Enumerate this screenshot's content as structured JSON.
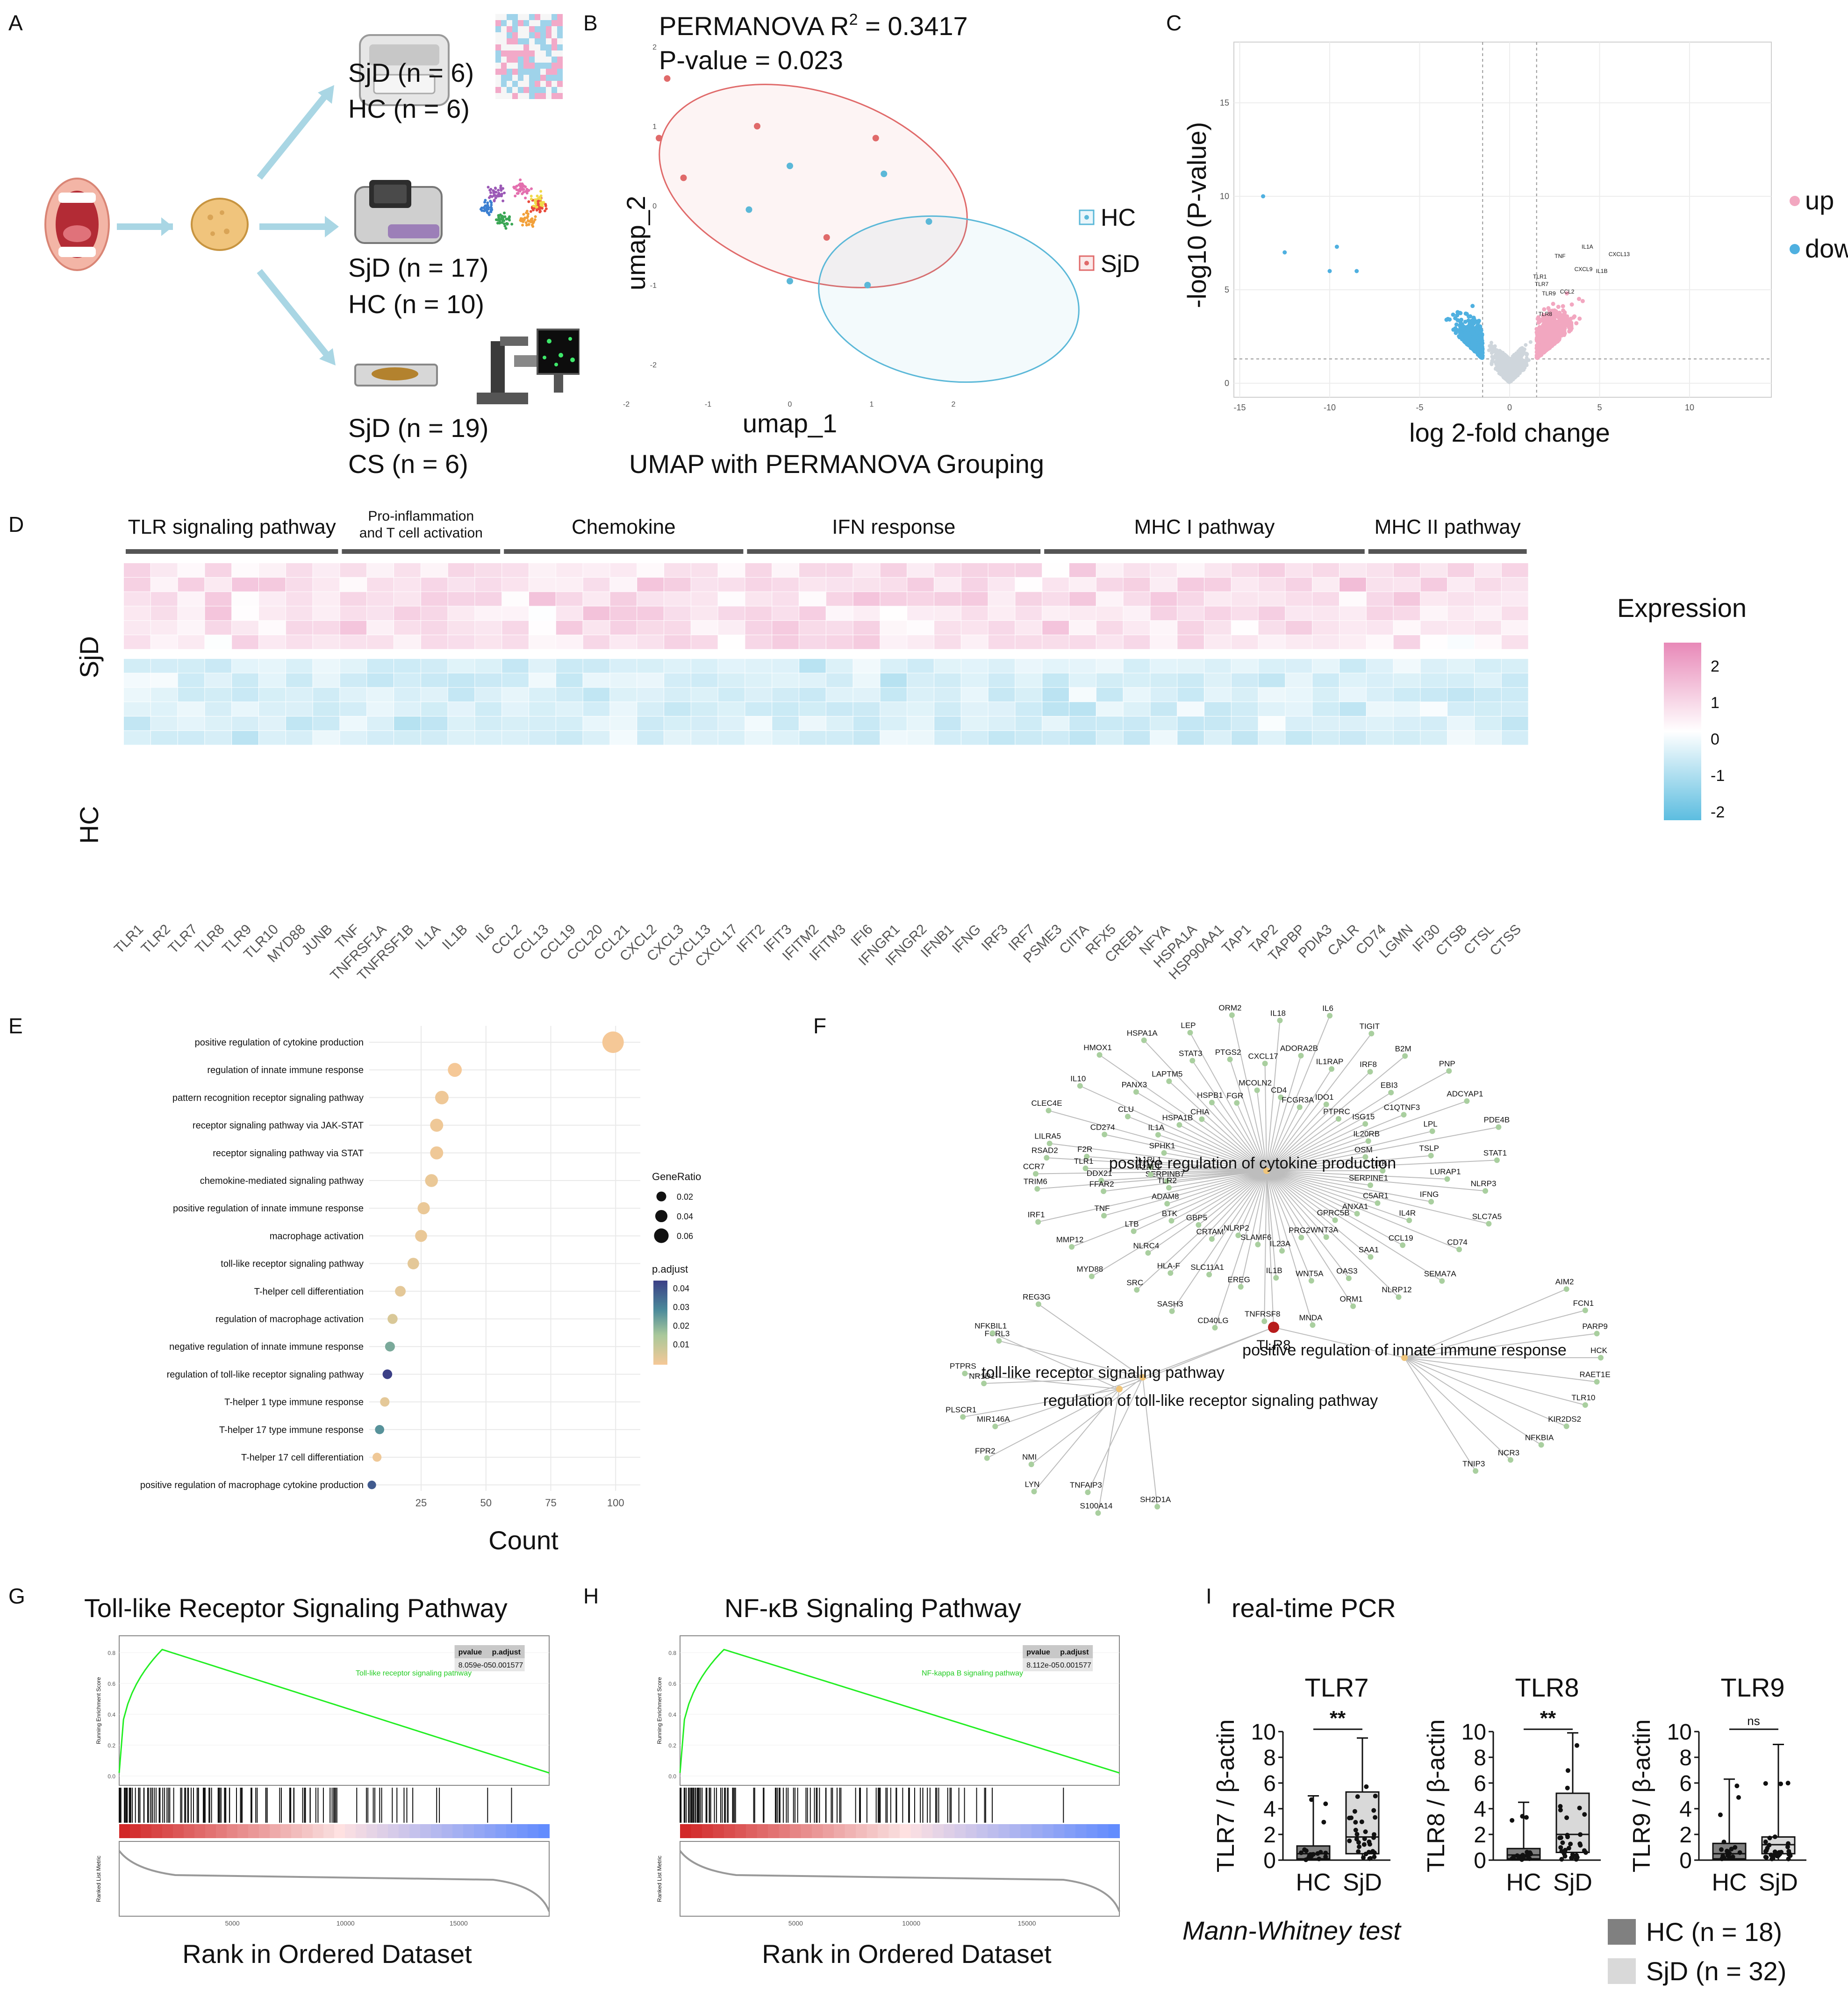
{
  "panels": {
    "A": "A",
    "B": "B",
    "C": "C",
    "D": "D",
    "E": "E",
    "F": "F",
    "G": "G",
    "H": "H",
    "I": "I"
  },
  "panelA": {
    "cohort1": [
      "SjD (n = 6)",
      "HC (n = 6)"
    ],
    "cohort2": [
      "SjD (n = 17)",
      "HC (n = 10)"
    ],
    "cohort3": [
      "SjD (n = 19)",
      "CS (n = 6)"
    ]
  },
  "panelB": {
    "stat_prefix": "PERMANOVA R",
    "stat_sup": "2",
    "stat_value": " = 0.3417",
    "pvalue": "P-value = 0.023",
    "xlabel": "umap_1",
    "ylabel": "umap_2",
    "subtitle": "UMAP with PERMANOVA Grouping",
    "legend": [
      {
        "label": "HC",
        "color": "#5bb8d8"
      },
      {
        "label": "SjD",
        "color": "#e06a6a"
      }
    ],
    "xticks": [
      "-2",
      "-1",
      "0",
      "1",
      "2"
    ],
    "yticks": [
      "2",
      "1",
      "0",
      "-1",
      "-2"
    ],
    "chart_data": {
      "type": "scatter",
      "series": [
        {
          "name": "SjD",
          "x": [
            -1.5,
            -1.6,
            -1.3,
            -0.4,
            1.05,
            0.45
          ],
          "y": [
            1.6,
            0.85,
            0.35,
            1.0,
            0.85,
            -0.4
          ]
        },
        {
          "name": "HC",
          "x": [
            0.0,
            1.15,
            -0.5,
            1.7,
            0.0,
            0.95
          ],
          "y": [
            0.5,
            0.4,
            -0.05,
            -0.2,
            -0.95,
            -1.0
          ]
        }
      ]
    }
  },
  "panelC": {
    "xlabel": "log 2-fold change",
    "ylabel": "-log10 (P-value)",
    "legend": [
      {
        "label": "up",
        "color": "#f2a7c0"
      },
      {
        "label": "down",
        "color": "#4fb0e0"
      }
    ],
    "xticks": [
      "-15",
      "-10",
      "-5",
      "0",
      "5",
      "10"
    ],
    "yticks": [
      "0",
      "5",
      "10",
      "15"
    ],
    "gene_labels": [
      "TNF",
      "IL1A",
      "CXCL13",
      "CXCL9",
      "IL1B",
      "TLR7",
      "TLR9",
      "CCL2",
      "TLR8",
      "TLR1"
    ]
  },
  "panelD": {
    "groups": [
      {
        "label": "TLR signaling pathway"
      },
      {
        "label": "Pro-inflammation\nand T cell activation"
      },
      {
        "label": "Chemokine"
      },
      {
        "label": "IFN response"
      },
      {
        "label": "MHC I pathway"
      },
      {
        "label": "MHC II pathway"
      }
    ],
    "row_labels": [
      "SjD",
      "HC"
    ],
    "genes": [
      "TLR1",
      "TLR2",
      "TLR7",
      "TLR8",
      "TLR9",
      "TLR10",
      "MYD88",
      "JUNB",
      "TNF",
      "TNFRSF1A",
      "TNFRSF1B",
      "IL1A",
      "IL1B",
      "IL6",
      "CCL2",
      "CCL13",
      "CCL19",
      "CCL20",
      "CCL21",
      "CXCL2",
      "CXCL3",
      "CXCL13",
      "CXCL17",
      "IFIT2",
      "IFIT3",
      "IFITM2",
      "IFITM3",
      "IFI6",
      "IFNGR1",
      "IFNGR2",
      "IFNB1",
      "IFNG",
      "IRF3",
      "IRF7",
      "PSME3",
      "CIITA",
      "RFX5",
      "CREB1",
      "NFYA",
      "HSPA1A",
      "HSP90AA1",
      "TAP1",
      "TAP2",
      "TAPBP",
      "PDIA3",
      "CALR",
      "CD74",
      "LGMN",
      "IFI30",
      "CTSB",
      "CTSL",
      "CTSS"
    ],
    "legend_title": "Expression",
    "legend_ticks": [
      "2",
      "1",
      "0",
      "-1",
      "-2"
    ]
  },
  "panelE": {
    "xlabel": "Count",
    "xticks": [
      "25",
      "50",
      "75",
      "100"
    ],
    "terms": [
      "positive regulation of cytokine production",
      "regulation of innate immune response",
      "pattern recognition receptor signaling pathway",
      "receptor signaling pathway via JAK-STAT",
      "receptor signaling pathway via STAT",
      "chemokine-mediated signaling pathway",
      "positive regulation of innate immune response",
      "macrophage activation",
      "toll-like receptor signaling pathway",
      "T-helper cell differentiation",
      "regulation of macrophage activation",
      "negative regulation of innate immune response",
      "regulation of toll-like receptor signaling pathway",
      "T-helper 1 type immune response",
      "T-helper 17 type immune response",
      "T-helper 17 cell differentiation",
      "positive regulation of macrophage cytokine production"
    ],
    "chart_data": {
      "type": "scatter",
      "x": [
        99,
        38,
        33,
        31,
        31,
        29,
        26,
        25,
        22,
        17,
        14,
        13,
        12,
        11,
        9,
        8,
        6
      ],
      "padj": [
        0.005,
        0.005,
        0.006,
        0.006,
        0.006,
        0.007,
        0.007,
        0.007,
        0.008,
        0.008,
        0.01,
        0.025,
        0.045,
        0.008,
        0.03,
        0.006,
        0.04
      ],
      "gene_ratio": [
        0.065,
        0.03,
        0.028,
        0.026,
        0.026,
        0.025,
        0.022,
        0.021,
        0.019,
        0.015,
        0.012,
        0.011,
        0.01,
        0.009,
        0.008,
        0.007,
        0.005
      ]
    },
    "legend_generatio_title": "GeneRatio",
    "legend_generatio": [
      "0.02",
      "0.04",
      "0.06"
    ],
    "legend_padj_title": "p.adjust",
    "legend_padj": [
      "0.04",
      "0.03",
      "0.02",
      "0.01"
    ]
  },
  "panelF": {
    "hubs": [
      "positive regulation of cytokine production",
      "positive regulation of innate immune response",
      "toll-like receptor signaling pathway",
      "regulation of toll-like receptor signaling pathway"
    ],
    "focus": "TLR8",
    "genes": [
      "SERPINB7",
      "DDX21",
      "CCR7",
      "IL1RL1",
      "F2R",
      "LILRA5",
      "SPHK1",
      "CD274",
      "CLEC4E",
      "IL1A",
      "CLU",
      "IL10",
      "HSPA1B",
      "PANX3",
      "HMOX1",
      "CHIA",
      "LAPTM5",
      "HSPA1A",
      "HSPB1",
      "STAT3",
      "LEP",
      "FGR",
      "PTGS2",
      "ORM2",
      "MCOLN2",
      "CXCL17",
      "IL18",
      "CD4",
      "ADORA2B",
      "IL6",
      "FCGR3A",
      "IL1RAP",
      "TIGIT",
      "IDO1",
      "IRF8",
      "B2M",
      "PTPRC",
      "EBI3",
      "PNP",
      "ISG15",
      "C1QTNF3",
      "ADCYAP1",
      "IL20RB",
      "LPL",
      "PDE4B",
      "OSM",
      "TSLP",
      "STAT1",
      "ITK",
      "LURAP1",
      "NLRP3",
      "SERPINE1",
      "IFNG",
      "SLC7A5",
      "C5AR1",
      "IL4R",
      "CD74",
      "ANXA1",
      "CCL19",
      "SEMA7A",
      "GPRC5B",
      "SAA1",
      "NLRP12",
      "WNT3A",
      "OAS3",
      "ORM1",
      "PRG2",
      "WNT5A",
      "MNDA",
      "IL23A",
      "IL1B",
      "TNFRSF8",
      "SLAMF6",
      "EREG",
      "CD40LG",
      "NLRP2",
      "SLC11A1",
      "SASH3",
      "CRTAM",
      "HLA-F",
      "SRC",
      "GBP5",
      "NLRC4",
      "MYD88",
      "BTK",
      "LTB",
      "MMP12",
      "ADAM8",
      "TNF",
      "IRF1",
      "TLR2",
      "FFAR2",
      "TRIM6",
      "F2RL1",
      "TLR1",
      "RSAD2",
      "AIM2",
      "FCN1",
      "PARP9",
      "HCK",
      "RAET1E",
      "TLR10",
      "KIR2DS2",
      "NFKBIA",
      "NCR3",
      "TNIP3",
      "SH2D1A",
      "S100A14",
      "TNFAIP3",
      "LYN",
      "NMI",
      "FPR2",
      "MIR146A",
      "PLSCR1",
      "NR1D1",
      "PTPRS",
      "FCRL3",
      "NFKBIL1",
      "REG3G"
    ]
  },
  "panelG": {
    "title": "Toll-like Receptor Signaling Pathway",
    "xlabel": "Rank in Ordered Dataset",
    "ylabel_top": "Running Enrichment Score",
    "ylabel_bottom": "Ranked List Metric",
    "curve_label": "Toll-like receptor signaling pathway",
    "table_headers": [
      "pvalue",
      "p.adjust"
    ],
    "table_values": [
      "8.059e-05",
      "0.001577"
    ],
    "xticks": [
      "5000",
      "10000",
      "15000"
    ],
    "yticks": [
      "0.8",
      "0.6",
      "0.4",
      "0.2",
      "0.0"
    ]
  },
  "panelH": {
    "title": "NF-κB Signaling Pathway",
    "xlabel": "Rank in Ordered Dataset",
    "ylabel_top": "Running Enrichment Score",
    "ylabel_bottom": "Ranked List Metric",
    "curve_label": "NF-kappa B signaling pathway",
    "table_headers": [
      "pvalue",
      "p.adjust"
    ],
    "table_values": [
      "8.112e-05",
      "0.001577"
    ],
    "xticks": [
      "5000",
      "10000",
      "15000"
    ],
    "yticks": [
      "0.8",
      "0.6",
      "0.4",
      "0.2",
      "0.0"
    ]
  },
  "panelI": {
    "title": "real-time PCR",
    "test": "Mann-Whitney test",
    "groups": [
      "HC",
      "SjD"
    ],
    "yticks": [
      "10",
      "8",
      "6",
      "4",
      "2",
      "0"
    ],
    "legend": [
      {
        "label": "HC (n = 18)",
        "color": "#808080"
      },
      {
        "label": "SjD (n = 32)",
        "color": "#d9d9d9"
      }
    ],
    "chart_data": [
      {
        "gene": "TLR7",
        "ylabel": "TLR7 / β-actin",
        "sig": "**",
        "ylim": [
          0,
          10
        ],
        "HC": {
          "min": 0.0,
          "q1": 0.1,
          "median": 0.5,
          "q3": 1.1,
          "max": 5.0
        },
        "SjD": {
          "min": 0.0,
          "q1": 0.5,
          "median": 1.8,
          "q3": 5.3,
          "max": 9.5
        }
      },
      {
        "gene": "TLR8",
        "ylabel": "TLR8 / β-actin",
        "sig": "**",
        "ylim": [
          0,
          10
        ],
        "HC": {
          "min": 0.0,
          "q1": 0.1,
          "median": 0.4,
          "q3": 0.9,
          "max": 4.5
        },
        "SjD": {
          "min": 0.0,
          "q1": 0.6,
          "median": 2.0,
          "q3": 5.2,
          "max": 9.9
        }
      },
      {
        "gene": "TLR9",
        "ylabel": "TLR9 / β-actin",
        "sig": "ns",
        "ylim": [
          0,
          10
        ],
        "HC": {
          "min": 0.0,
          "q1": 0.1,
          "median": 0.5,
          "q3": 1.3,
          "max": 6.3
        },
        "SjD": {
          "min": 0.0,
          "q1": 0.5,
          "median": 1.2,
          "q3": 1.8,
          "max": 9.0
        }
      }
    ]
  }
}
